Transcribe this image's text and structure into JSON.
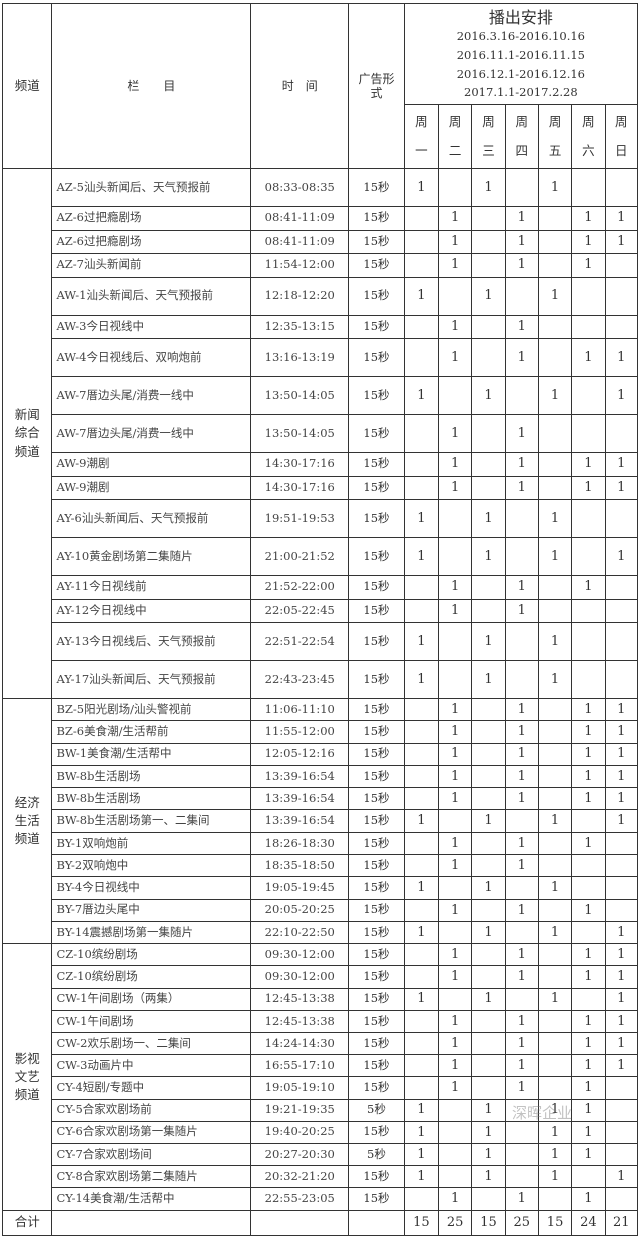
{
  "header": {
    "channel": "频道",
    "program": "栏　　目",
    "time": "时　间",
    "ad_format": "广告形式",
    "schedule_title": "播出安排",
    "periods": [
      "2016.3.16-2016.10.16",
      "2016.11.1-2016.11.15",
      "2016.12.1-2016.12.16",
      "2017.1.1-2017.2.28"
    ],
    "weekdays": [
      [
        "周",
        "一"
      ],
      [
        "周",
        "二"
      ],
      [
        "周",
        "三"
      ],
      [
        "周",
        "四"
      ],
      [
        "周",
        "五"
      ],
      [
        "周",
        "六"
      ],
      [
        "周",
        "日"
      ]
    ]
  },
  "sections": [
    {
      "channel": "新闻综合频道",
      "rows": [
        {
          "program": "AZ-5汕头新闻后、天气预报前",
          "time": "08:33-08:35",
          "ad": "15秒",
          "days": [
            "1",
            "",
            "1",
            "",
            "1",
            "",
            ""
          ]
        },
        {
          "program": "AZ-6过把瘾剧场",
          "time": "08:41-11:09",
          "ad": "15秒",
          "days": [
            "",
            "1",
            "",
            "1",
            "",
            "1",
            "1"
          ]
        },
        {
          "program": "AZ-6过把瘾剧场",
          "time": "08:41-11:09",
          "ad": "15秒",
          "days": [
            "",
            "1",
            "",
            "1",
            "",
            "1",
            "1"
          ]
        },
        {
          "program": "AZ-7汕头新闻前",
          "time": "11:54-12:00",
          "ad": "15秒",
          "days": [
            "",
            "1",
            "",
            "1",
            "",
            "1",
            ""
          ]
        },
        {
          "program": "AW-1汕头新闻后、天气预报前",
          "time": "12:18-12:20",
          "ad": "15秒",
          "days": [
            "1",
            "",
            "1",
            "",
            "1",
            "",
            ""
          ]
        },
        {
          "program": "AW-3今日视线中",
          "time": "12:35-13:15",
          "ad": "15秒",
          "days": [
            "",
            "1",
            "",
            "1",
            "",
            "",
            ""
          ]
        },
        {
          "program": "AW-4今日视线后、双响炮前",
          "time": "13:16-13:19",
          "ad": "15秒",
          "days": [
            "",
            "1",
            "",
            "1",
            "",
            "1",
            "1"
          ]
        },
        {
          "program": "AW-7厝边头尾/消费一线中",
          "time": "13:50-14:05",
          "ad": "15秒",
          "days": [
            "1",
            "",
            "1",
            "",
            "1",
            "",
            "1"
          ]
        },
        {
          "program": "AW-7厝边头尾/消费一线中",
          "time": "13:50-14:05",
          "ad": "15秒",
          "days": [
            "",
            "1",
            "",
            "1",
            "",
            "",
            ""
          ]
        },
        {
          "program": "AW-9潮剧",
          "time": "14:30-17:16",
          "ad": "15秒",
          "days": [
            "",
            "1",
            "",
            "1",
            "",
            "1",
            "1"
          ]
        },
        {
          "program": "AW-9潮剧",
          "time": "14:30-17:16",
          "ad": "15秒",
          "days": [
            "",
            "1",
            "",
            "1",
            "",
            "1",
            "1"
          ]
        },
        {
          "program": "AY-6汕头新闻后、天气预报前",
          "time": "19:51-19:53",
          "ad": "15秒",
          "days": [
            "1",
            "",
            "1",
            "",
            "1",
            "",
            ""
          ]
        },
        {
          "program": "AY-10黄金剧场第二集随片",
          "time": "21:00-21:52",
          "ad": "15秒",
          "days": [
            "1",
            "",
            "1",
            "",
            "1",
            "",
            "1"
          ]
        },
        {
          "program": "AY-11今日视线前",
          "time": "21:52-22:00",
          "ad": "15秒",
          "days": [
            "",
            "1",
            "",
            "1",
            "",
            "1",
            ""
          ]
        },
        {
          "program": "AY-12今日视线中",
          "time": "22:05-22:45",
          "ad": "15秒",
          "days": [
            "",
            "1",
            "",
            "1",
            "",
            "",
            ""
          ]
        },
        {
          "program": "AY-13今日视线后、天气预报前",
          "time": "22:51-22:54",
          "ad": "15秒",
          "days": [
            "1",
            "",
            "1",
            "",
            "1",
            "",
            ""
          ]
        },
        {
          "program": "AY-17汕头新闻后、天气预报前",
          "time": "22:43-23:45",
          "ad": "15秒",
          "days": [
            "1",
            "",
            "1",
            "",
            "1",
            "",
            ""
          ]
        }
      ]
    },
    {
      "channel": "经济生活频道",
      "rows": [
        {
          "program": "BZ-5阳光剧场/汕头警视前",
          "time": "11:06-11:10",
          "ad": "15秒",
          "days": [
            "",
            "1",
            "",
            "1",
            "",
            "1",
            "1"
          ]
        },
        {
          "program": "BZ-6美食潮/生活帮前",
          "time": "11:55-12:00",
          "ad": "15秒",
          "days": [
            "",
            "1",
            "",
            "1",
            "",
            "1",
            "1"
          ]
        },
        {
          "program": "BW-1美食潮/生活帮中",
          "time": "12:05-12:16",
          "ad": "15秒",
          "days": [
            "",
            "1",
            "",
            "1",
            "",
            "1",
            "1"
          ]
        },
        {
          "program": "BW-8b生活剧场",
          "time": "13:39-16:54",
          "ad": "15秒",
          "days": [
            "",
            "1",
            "",
            "1",
            "",
            "1",
            "1"
          ]
        },
        {
          "program": "BW-8b生活剧场",
          "time": "13:39-16:54",
          "ad": "15秒",
          "days": [
            "",
            "1",
            "",
            "1",
            "",
            "1",
            "1"
          ]
        },
        {
          "program": "BW-8b生活剧场第一、二集间",
          "time": "13:39-16:54",
          "ad": "15秒",
          "days": [
            "1",
            "",
            "1",
            "",
            "1",
            "",
            "1"
          ]
        },
        {
          "program": "BY-1双响炮前",
          "time": "18:26-18:30",
          "ad": "15秒",
          "days": [
            "",
            "1",
            "",
            "1",
            "",
            "1",
            ""
          ]
        },
        {
          "program": "BY-2双响炮中",
          "time": "18:35-18:50",
          "ad": "15秒",
          "days": [
            "",
            "1",
            "",
            "1",
            "",
            "",
            ""
          ]
        },
        {
          "program": "BY-4今日视线中",
          "time": "19:05-19:45",
          "ad": "15秒",
          "days": [
            "1",
            "",
            "1",
            "",
            "1",
            "",
            ""
          ]
        },
        {
          "program": "BY-7厝边头尾中",
          "time": "20:05-20:25",
          "ad": "15秒",
          "days": [
            "",
            "1",
            "",
            "1",
            "",
            "1",
            ""
          ]
        },
        {
          "program": "BY-14震撼剧场第一集随片",
          "time": "22:10-22:50",
          "ad": "15秒",
          "days": [
            "1",
            "",
            "1",
            "",
            "1",
            "",
            "1"
          ]
        }
      ]
    },
    {
      "channel": "影视文艺频道",
      "rows": [
        {
          "program": "CZ-10缤纷剧场",
          "time": "09:30-12:00",
          "ad": "15秒",
          "days": [
            "",
            "1",
            "",
            "1",
            "",
            "1",
            "1"
          ]
        },
        {
          "program": "CZ-10缤纷剧场",
          "time": "09:30-12:00",
          "ad": "15秒",
          "days": [
            "",
            "1",
            "",
            "1",
            "",
            "1",
            "1"
          ]
        },
        {
          "program": "CW-1午间剧场（两集）",
          "time": "12:45-13:38",
          "ad": "15秒",
          "days": [
            "1",
            "",
            "1",
            "",
            "1",
            "",
            "1"
          ]
        },
        {
          "program": "CW-1午间剧场",
          "time": "12:45-13:38",
          "ad": "15秒",
          "days": [
            "",
            "1",
            "",
            "1",
            "",
            "1",
            "1"
          ]
        },
        {
          "program": "CW-2欢乐剧场一、二集间",
          "time": "14:24-14:30",
          "ad": "15秒",
          "days": [
            "",
            "1",
            "",
            "1",
            "",
            "1",
            "1"
          ]
        },
        {
          "program": "CW-3动画片中",
          "time": "16:55-17:10",
          "ad": "15秒",
          "days": [
            "",
            "1",
            "",
            "1",
            "",
            "1",
            "1"
          ]
        },
        {
          "program": "CY-4短剧/专题中",
          "time": "19:05-19:10",
          "ad": "15秒",
          "days": [
            "",
            "1",
            "",
            "1",
            "",
            "1",
            ""
          ]
        },
        {
          "program": "CY-5合家欢剧场前",
          "time": "19:21-19:35",
          "ad": "5秒",
          "days": [
            "1",
            "",
            "1",
            "",
            "1",
            "1",
            ""
          ]
        },
        {
          "program": "CY-6合家欢剧场第一集随片",
          "time": "19:40-20:25",
          "ad": "15秒",
          "days": [
            "1",
            "",
            "1",
            "",
            "1",
            "1",
            ""
          ]
        },
        {
          "program": "CY-7合家欢剧场间",
          "time": "20:27-20:30",
          "ad": "5秒",
          "days": [
            "1",
            "",
            "1",
            "",
            "1",
            "1",
            ""
          ]
        },
        {
          "program": "CY-8合家欢剧场第二集随片",
          "time": "20:32-21:20",
          "ad": "15秒",
          "days": [
            "1",
            "",
            "1",
            "",
            "1",
            "",
            "1"
          ]
        },
        {
          "program": "CY-14美食潮/生活帮中",
          "time": "22:55-23:05",
          "ad": "15秒",
          "days": [
            "",
            "1",
            "",
            "1",
            "",
            "1",
            ""
          ]
        }
      ]
    }
  ],
  "total": {
    "label": "合计",
    "values": [
      "15",
      "25",
      "15",
      "25",
      "15",
      "24",
      "21"
    ]
  },
  "watermark": "深晖企业"
}
